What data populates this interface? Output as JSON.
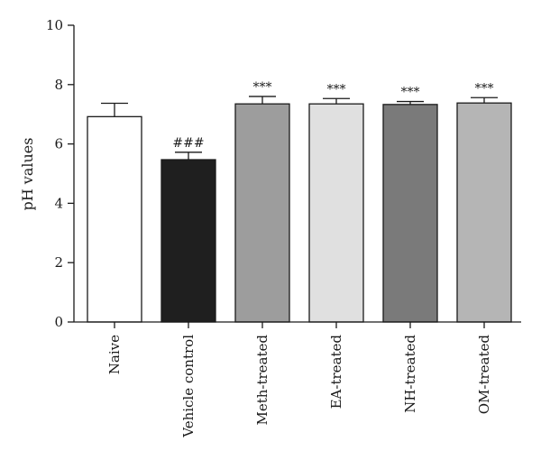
{
  "chart_data": {
    "type": "bar",
    "title": "",
    "xlabel": "",
    "ylabel": "pH values",
    "ylim": [
      0,
      10
    ],
    "yticks": [
      0,
      2,
      4,
      6,
      8,
      10
    ],
    "grid": false,
    "categories": [
      "Naive",
      "Vehicle control",
      "Meth-treated",
      "EA-treated",
      "NH-treated",
      "OM-treated"
    ],
    "values": [
      6.92,
      5.47,
      7.35,
      7.35,
      7.33,
      7.38
    ],
    "errors": [
      0.45,
      0.25,
      0.25,
      0.18,
      0.1,
      0.18
    ],
    "annotations": [
      "",
      "###",
      "***",
      "***",
      "***",
      "***"
    ],
    "colors": [
      "#ffffff",
      "#1f1f1f",
      "#9d9d9d",
      "#e0e0e0",
      "#7a7a7a",
      "#b5b5b5"
    ]
  }
}
